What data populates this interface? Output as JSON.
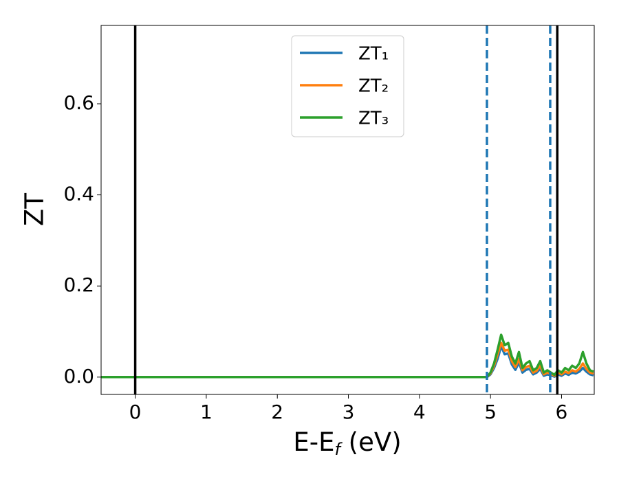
{
  "chart_data": {
    "type": "line",
    "xlabel": [
      "E-E",
      "f",
      " (eV)"
    ],
    "ylabel": "ZT",
    "x": [
      -0.48,
      4.9,
      4.95,
      5.0,
      5.05,
      5.1,
      5.15,
      5.2,
      5.25,
      5.3,
      5.35,
      5.4,
      5.45,
      5.5,
      5.55,
      5.6,
      5.65,
      5.7,
      5.75,
      5.8,
      5.85,
      5.9,
      5.95,
      6.0,
      6.05,
      6.1,
      6.15,
      6.2,
      6.25,
      6.3,
      6.35,
      6.4,
      6.45
    ],
    "series": [
      {
        "name": "ZT₁",
        "color": "#1f77b4",
        "values": [
          0,
          0,
          0,
          0.006,
          0.02,
          0.04,
          0.068,
          0.05,
          0.052,
          0.028,
          0.016,
          0.032,
          0.01,
          0.016,
          0.018,
          0.006,
          0.01,
          0.018,
          0.003,
          0.006,
          0.004,
          0.001,
          0.006,
          0.003,
          0.008,
          0.005,
          0.01,
          0.008,
          0.012,
          0.02,
          0.012,
          0.006,
          0.004
        ]
      },
      {
        "name": "ZT₂",
        "color": "#ff7f0e",
        "values": [
          0,
          0,
          0,
          0.008,
          0.025,
          0.05,
          0.075,
          0.058,
          0.06,
          0.035,
          0.022,
          0.04,
          0.015,
          0.022,
          0.025,
          0.01,
          0.014,
          0.025,
          0.006,
          0.01,
          0.007,
          0.003,
          0.01,
          0.006,
          0.012,
          0.009,
          0.015,
          0.012,
          0.018,
          0.03,
          0.018,
          0.01,
          0.008
        ]
      },
      {
        "name": "ZT₃",
        "color": "#2ca02c",
        "values": [
          0,
          0,
          0,
          0.01,
          0.03,
          0.06,
          0.093,
          0.07,
          0.075,
          0.045,
          0.03,
          0.055,
          0.02,
          0.03,
          0.035,
          0.015,
          0.02,
          0.035,
          0.01,
          0.015,
          0.01,
          0.005,
          0.015,
          0.01,
          0.02,
          0.015,
          0.025,
          0.02,
          0.03,
          0.055,
          0.03,
          0.015,
          0.012
        ]
      }
    ],
    "vlines": [
      {
        "x": 0,
        "color": "#000000",
        "dashed": false
      },
      {
        "x": 4.95,
        "color": "#1f77b4",
        "dashed": true
      },
      {
        "x": 5.84,
        "color": "#1f77b4",
        "dashed": true
      },
      {
        "x": 5.94,
        "color": "#000000",
        "dashed": false
      }
    ],
    "xlim": [
      -0.48,
      6.46
    ],
    "ylim": [
      -0.038,
      0.772
    ],
    "xticks": [
      0,
      1,
      2,
      3,
      4,
      5,
      6
    ],
    "yticks": [
      {
        "value": 0,
        "label": "0.0"
      },
      {
        "value": 0.2,
        "label": "0.2"
      },
      {
        "value": 0.4,
        "label": "0.4"
      },
      {
        "value": 0.6,
        "label": "0.6"
      }
    ],
    "legend": "upper center",
    "grid": false
  }
}
